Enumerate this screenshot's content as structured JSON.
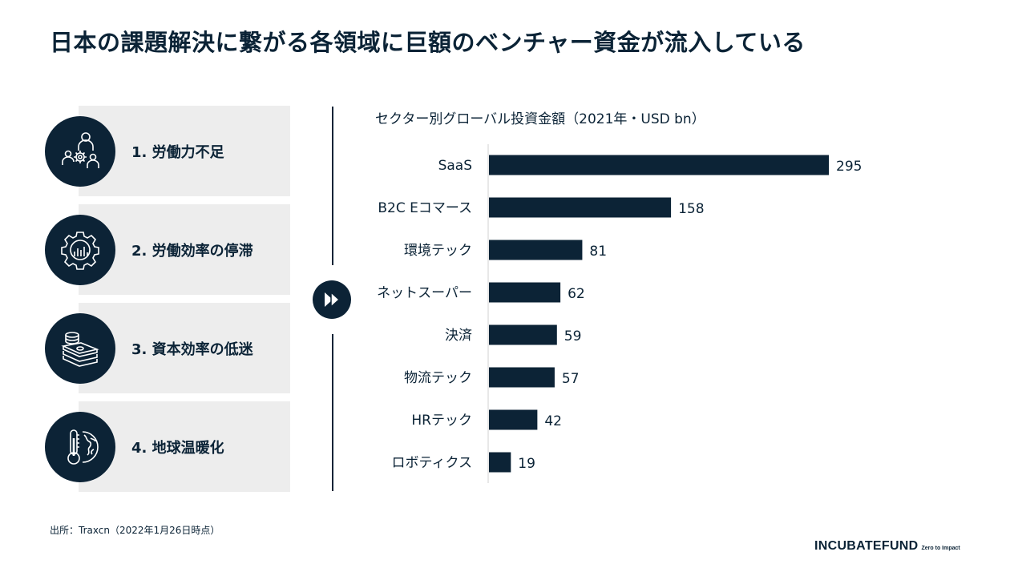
{
  "title": "日本の課題解決に繋がる各領域に巨額のベンチャー資金が流入している",
  "issues": [
    {
      "label": "1. 労働力不足",
      "icon": "people-gear-icon"
    },
    {
      "label": "2. 労働効率の停滞",
      "icon": "gear-chart-icon"
    },
    {
      "label": "3. 資本効率の低迷",
      "icon": "money-stack-icon"
    },
    {
      "label": "4. 地球温暖化",
      "icon": "thermometer-globe-icon"
    }
  ],
  "arrow_icon": "double-chevron-right-icon",
  "colors": {
    "navy": "#0c2336",
    "panel": "#ededed"
  },
  "chart_data": {
    "type": "bar",
    "orientation": "horizontal",
    "title": "セクター別グローバル投資金額（2021年・USD bn）",
    "categories": [
      "SaaS",
      "B2C Eコマース",
      "環境テック",
      "ネットスーパー",
      "決済",
      "物流テック",
      "HRテック",
      "ロボティクス"
    ],
    "values": [
      295,
      158,
      81,
      62,
      59,
      57,
      42,
      19
    ],
    "xlim": [
      0,
      295
    ],
    "color": "#0c2336",
    "grid": false
  },
  "source": "出所：Traxcn（2022年1月26日時点）",
  "logo": {
    "main": "INCUBATEFUND",
    "tagline": "Zero to Impact"
  }
}
